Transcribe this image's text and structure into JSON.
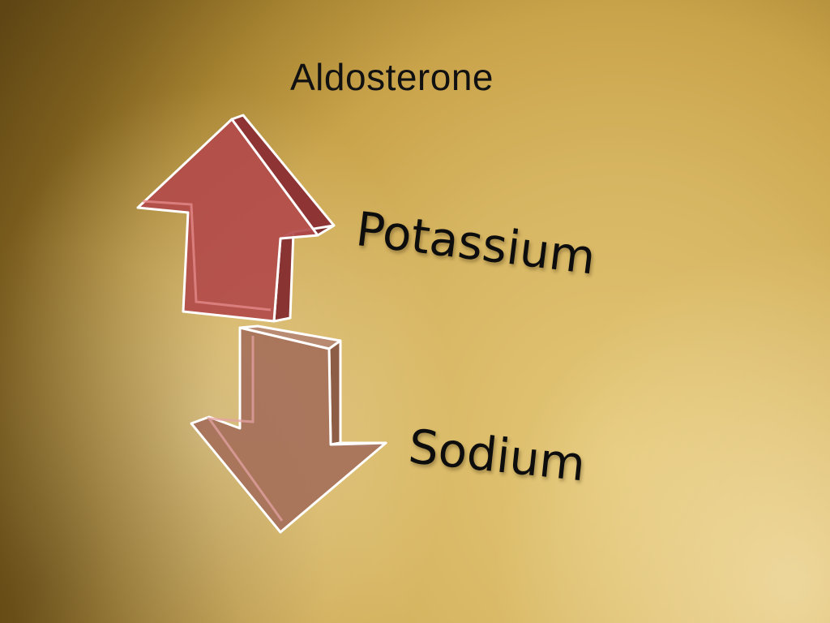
{
  "slide": {
    "title": "Aldosterone",
    "increase_label": "Potassium",
    "decrease_label": "Sodium"
  },
  "diagram": {
    "items": [
      {
        "label": "Potassium",
        "direction": "up",
        "color": "#b24a4a"
      },
      {
        "label": "Sodium",
        "direction": "down",
        "color": "#a5705a"
      }
    ],
    "icons": [
      "up-arrow-icon",
      "down-arrow-icon"
    ]
  }
}
